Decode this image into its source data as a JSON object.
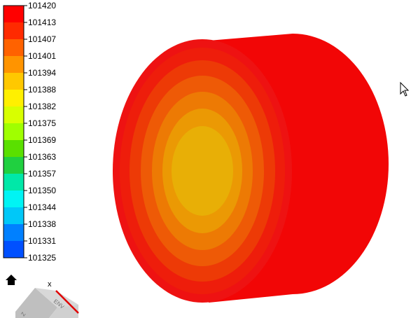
{
  "legend": {
    "labels": [
      "101420",
      "101413",
      "101407",
      "101401",
      "101394",
      "101388",
      "101382",
      "101375",
      "101369",
      "101363",
      "101357",
      "101350",
      "101344",
      "101338",
      "101331",
      "101325"
    ],
    "colors": [
      "#ff0000",
      "#ff2a00",
      "#ff6200",
      "#ff9400",
      "#ffc800",
      "#fff000",
      "#d8ff00",
      "#a0ff00",
      "#5ae000",
      "#20d040",
      "#00e8a8",
      "#00f4f4",
      "#00c8f8",
      "#0080ff",
      "#0050ff",
      "#0000ff"
    ]
  },
  "plot_colors": {
    "side": "#f20606",
    "rim": "#ee1212",
    "rings": [
      "#ee1d0b",
      "#ed3a06",
      "#ee5a06",
      "#ed7a04",
      "#eb9904",
      "#e8af06"
    ]
  },
  "icons": {
    "home": "home-icon",
    "cursor": "mouse-pointer-icon",
    "orientation": "orientation-cube-icon"
  },
  "axes": {
    "x": "x",
    "cube_face_front": "Z",
    "cube_face_top": "ENV"
  }
}
